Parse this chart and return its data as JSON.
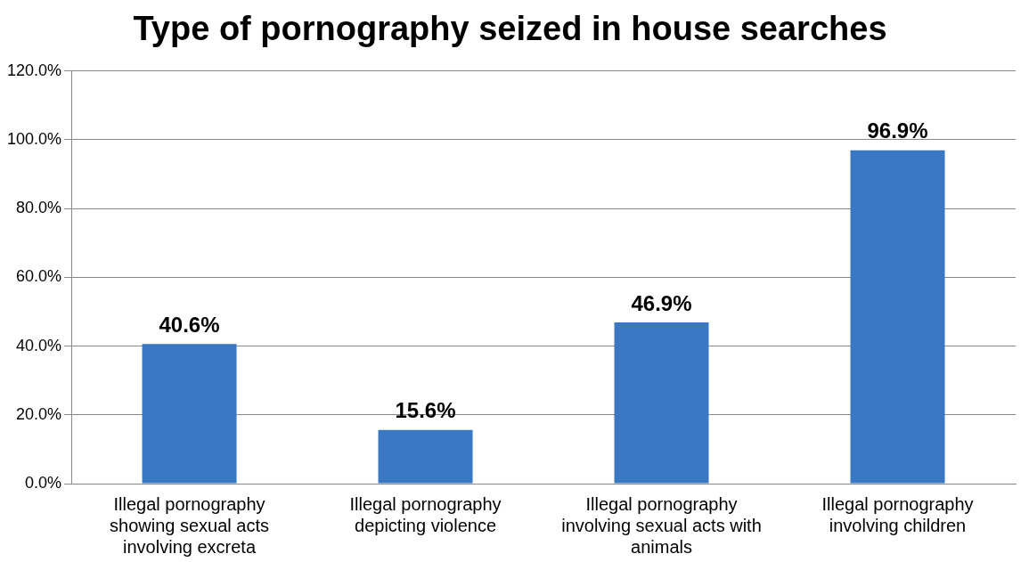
{
  "chart_data": {
    "type": "bar",
    "title": "Type of pornography seized in house searches",
    "categories": [
      "Illegal pornography showing sexual acts involving excreta",
      "Illegal pornography depicting violence",
      "Illegal pornography involving sexual acts with animals",
      "Illegal pornography involving children"
    ],
    "values": [
      40.6,
      15.6,
      46.9,
      96.9
    ],
    "value_labels": [
      "40.6%",
      "15.6%",
      "46.9%",
      "96.9%"
    ],
    "color": "#3a78c4",
    "ylim": [
      0,
      120
    ],
    "yticks": [
      {
        "value": 0,
        "label": "0.0%"
      },
      {
        "value": 20,
        "label": "20.0%"
      },
      {
        "value": 40,
        "label": "40.0%"
      },
      {
        "value": 60,
        "label": "60.0%"
      },
      {
        "value": 80,
        "label": "80.0%"
      },
      {
        "value": 100,
        "label": "100.0%"
      },
      {
        "value": 120,
        "label": "120.0%"
      }
    ],
    "grid": "y",
    "legend": false
  }
}
